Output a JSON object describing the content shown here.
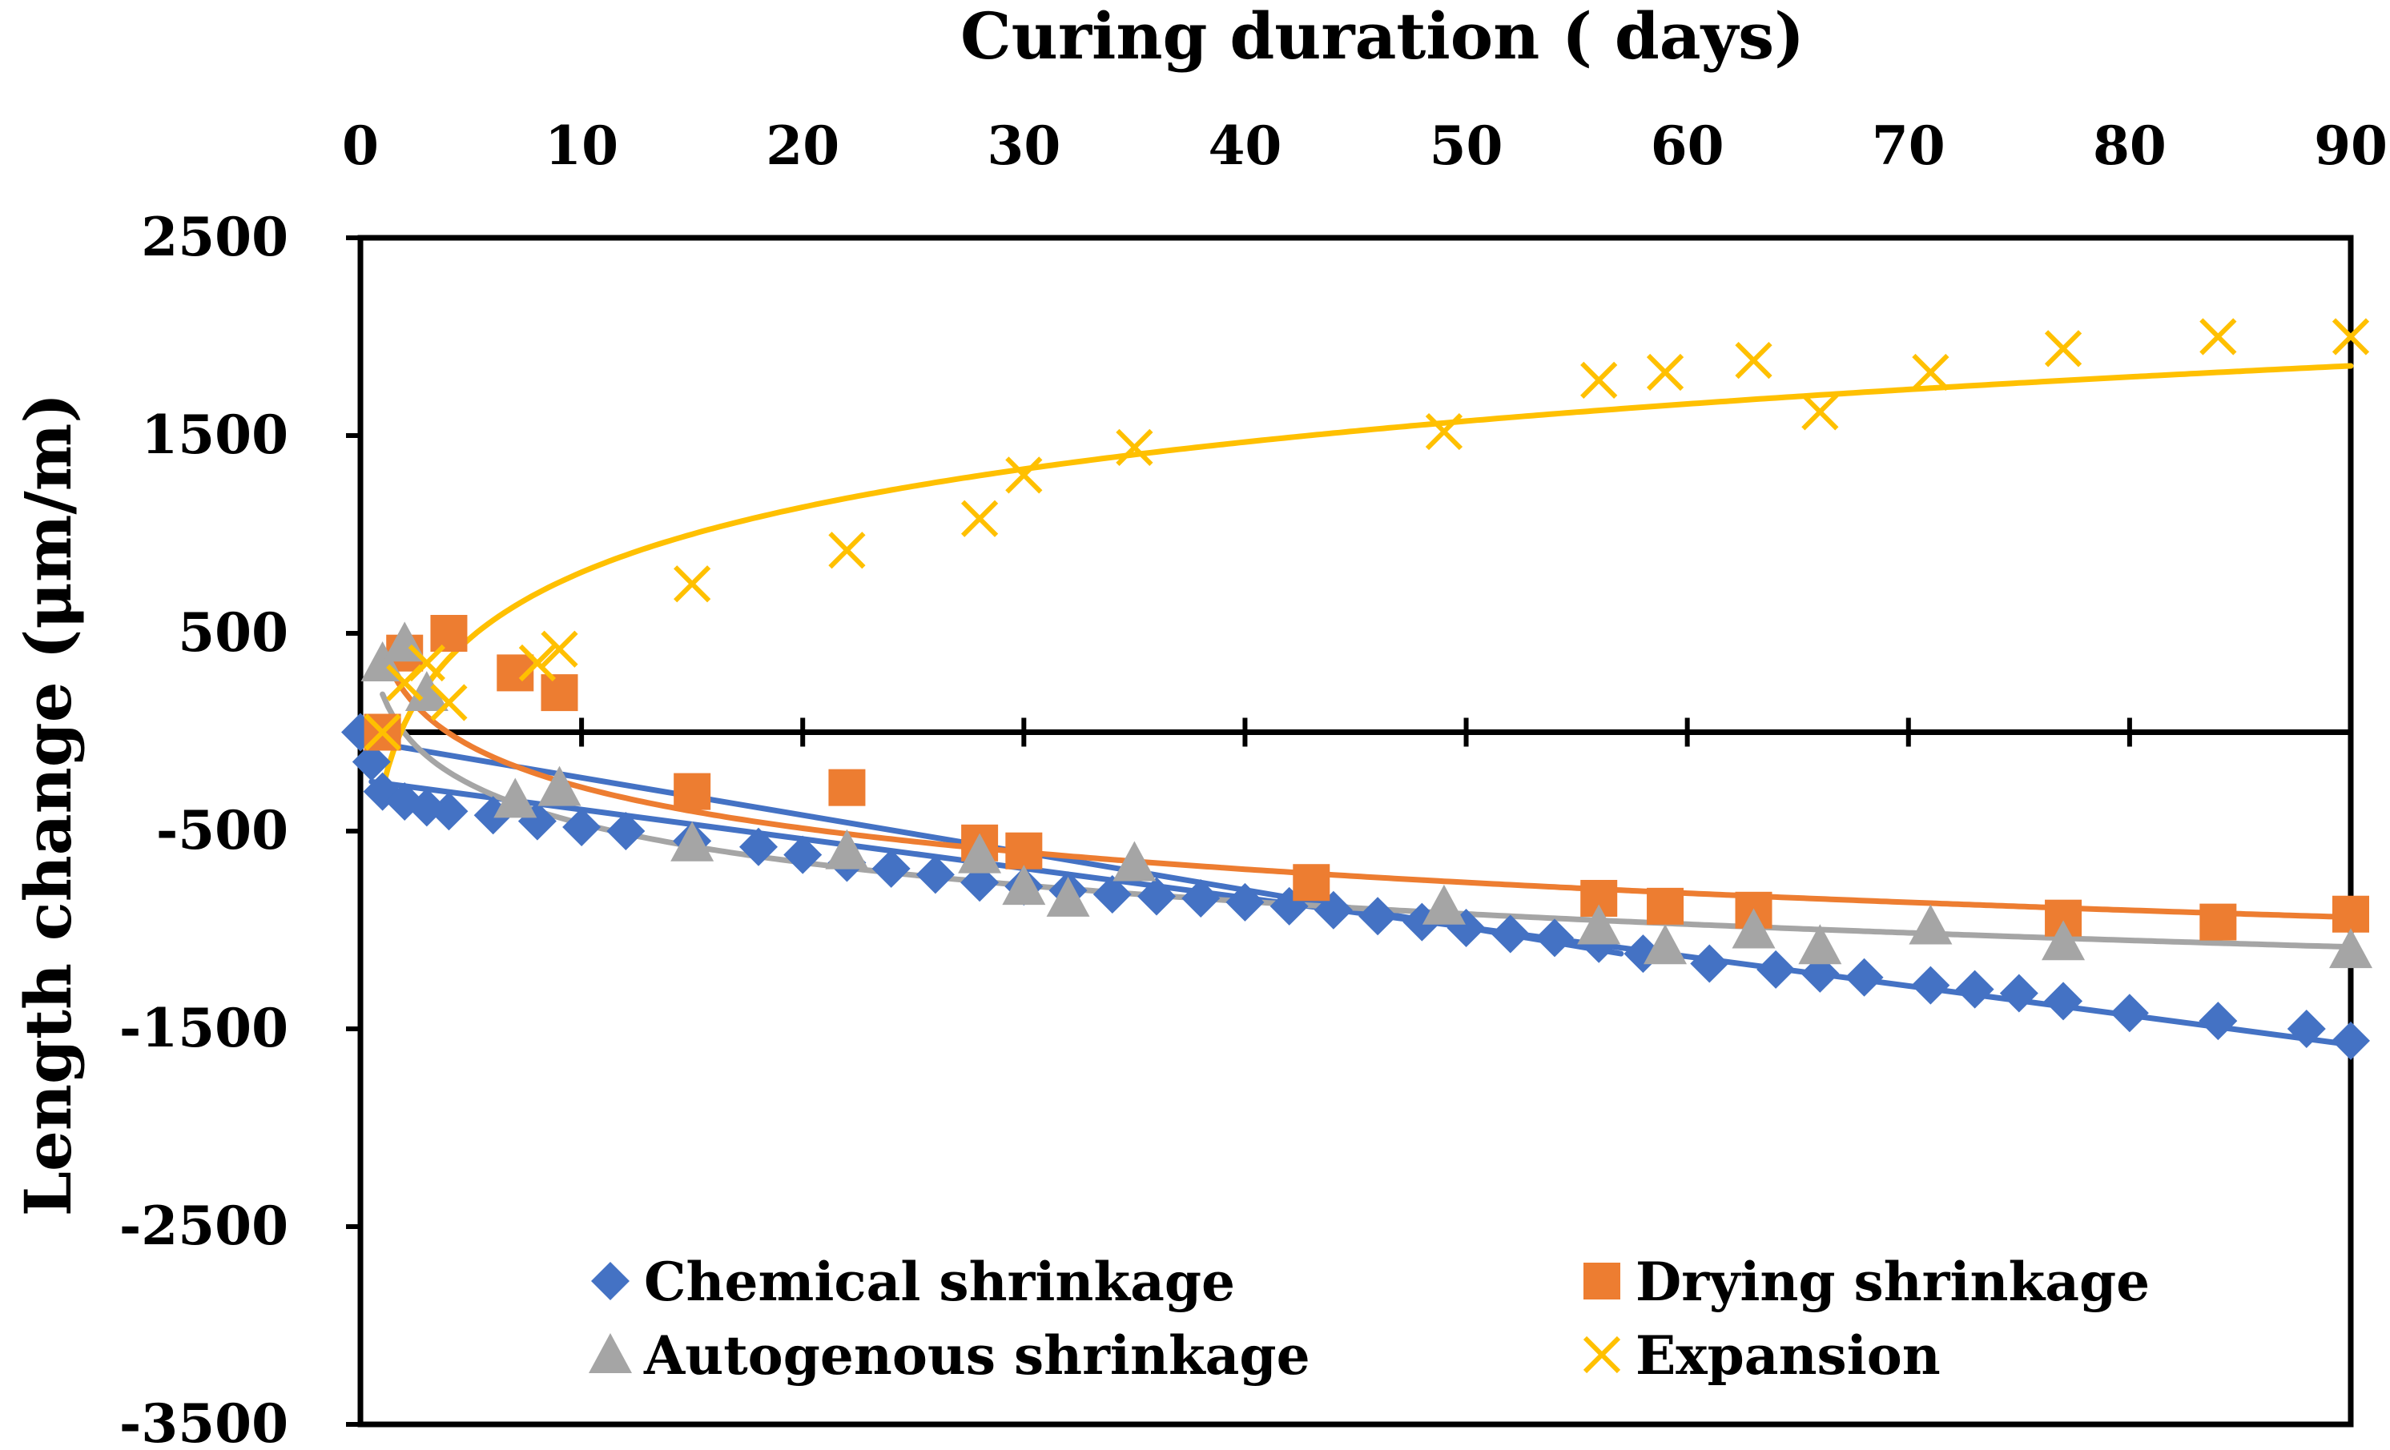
{
  "chart_data": {
    "type": "scatter",
    "xlabel": "Curing duration ( days)",
    "ylabel": "Length change (μm/m)",
    "xlim": [
      0,
      90
    ],
    "ylim": [
      -3500,
      2500
    ],
    "x_ticks": [
      0,
      10,
      20,
      30,
      40,
      50,
      60,
      70,
      80,
      90
    ],
    "y_ticks": [
      2500,
      1500,
      500,
      -500,
      -1500,
      -2500,
      -3500
    ],
    "x_tick_labels": [
      "0",
      "10",
      "20",
      "30",
      "40",
      "50",
      "60",
      "70",
      "80",
      "90"
    ],
    "y_tick_labels": [
      "2500",
      "1500",
      "500",
      "-500",
      "-1500",
      "-2500",
      "-3500"
    ],
    "x_axis_position": "top",
    "grid": false,
    "legend_position": "bottom",
    "series": [
      {
        "name": "Chemical shrinkage",
        "marker": "diamond",
        "color": "#4472C4",
        "x": [
          0,
          0.5,
          1,
          2,
          3,
          4,
          6,
          8,
          10,
          12,
          15,
          18,
          20,
          22,
          24,
          26,
          28,
          30,
          32,
          34,
          36,
          38,
          40,
          42,
          44,
          46,
          48,
          50,
          52,
          54,
          56,
          58,
          61,
          64,
          66,
          68,
          71,
          73,
          75,
          77,
          80,
          84,
          88,
          90
        ],
        "y": [
          0,
          -150,
          -300,
          -350,
          -380,
          -400,
          -420,
          -450,
          -480,
          -500,
          -550,
          -580,
          -620,
          -660,
          -690,
          -720,
          -760,
          -780,
          -800,
          -820,
          -830,
          -840,
          -860,
          -880,
          -900,
          -930,
          -960,
          -990,
          -1020,
          -1040,
          -1070,
          -1120,
          -1170,
          -1200,
          -1220,
          -1240,
          -1280,
          -1300,
          -1320,
          -1360,
          -1420,
          -1460,
          -1500,
          -1560
        ],
        "trendline": "logarithmic"
      },
      {
        "name": "Drying shrinkage",
        "marker": "square",
        "color": "#ED7D31",
        "x": [
          1,
          2,
          4,
          7,
          9,
          15,
          22,
          28,
          30,
          43,
          56,
          59,
          63,
          77,
          84,
          90
        ],
        "y": [
          0,
          400,
          500,
          300,
          200,
          -300,
          -280,
          -560,
          -600,
          -760,
          -840,
          -880,
          -900,
          -940,
          -960,
          -920
        ],
        "trendline": "logarithmic"
      },
      {
        "name": "Autogenous shrinkage",
        "marker": "triangle",
        "color": "#A5A5A5",
        "x": [
          1,
          2,
          3,
          7,
          9,
          15,
          22,
          28,
          30,
          32,
          35,
          49,
          56,
          59,
          63,
          66,
          71,
          77,
          90
        ],
        "y": [
          350,
          450,
          200,
          -340,
          -280,
          -560,
          -600,
          -620,
          -780,
          -840,
          -660,
          -880,
          -980,
          -1080,
          -1000,
          -1080,
          -980,
          -1060,
          -1100
        ],
        "trendline": "logarithmic"
      },
      {
        "name": "Expansion",
        "marker": "x",
        "color": "#FFC000",
        "x": [
          1,
          2,
          3,
          4,
          8,
          9,
          15,
          22,
          28,
          30,
          35,
          49,
          56,
          59,
          63,
          66,
          71,
          77,
          84,
          90
        ],
        "y": [
          0,
          250,
          350,
          150,
          350,
          420,
          750,
          920,
          1080,
          1300,
          1440,
          1520,
          1780,
          1820,
          1880,
          1620,
          1820,
          1940,
          2000,
          2000
        ],
        "trendline": "logarithmic"
      }
    ],
    "trendlines": [
      {
        "series": "Chemical shrinkage",
        "type": "linear",
        "color": "#4472C4",
        "points": [
          [
            0.5,
            -250
          ],
          [
            90,
            -1580
          ]
        ]
      },
      {
        "series": "Chemical shrinkage",
        "type": "logarithmic",
        "color": "#4472C4",
        "points": [
          [
            0.5,
            -50
          ],
          [
            57,
            -1120
          ]
        ]
      },
      {
        "series": "Drying shrinkage",
        "type": "logarithmic",
        "color": "#ED7D31",
        "a": 410,
        "b": -299
      },
      {
        "series": "Autogenous shrinkage",
        "type": "logarithmic",
        "color": "#A5A5A5",
        "a": 192,
        "b": -284
      },
      {
        "series": "Expansion",
        "type": "logarithmic",
        "color": "#FFC000",
        "a": -285,
        "b": 475
      }
    ]
  }
}
